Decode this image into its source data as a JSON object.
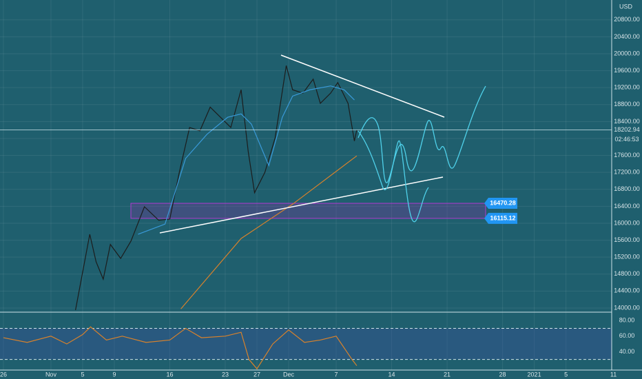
{
  "chart_data": [
    {
      "type": "line",
      "currency": "USD",
      "xlim": [
        -0.43,
        80.6
      ],
      "xticks": [
        {
          "value": 0,
          "label": "26"
        },
        {
          "value": 6,
          "label": "Nov"
        },
        {
          "value": 10,
          "label": "5"
        },
        {
          "value": 14,
          "label": "9"
        },
        {
          "value": 21,
          "label": "16"
        },
        {
          "value": 28,
          "label": "23"
        },
        {
          "value": 32,
          "label": "27"
        },
        {
          "value": 36,
          "label": "Dec"
        },
        {
          "value": 42,
          "label": "7"
        },
        {
          "value": 49,
          "label": "14"
        },
        {
          "value": 56,
          "label": "21"
        },
        {
          "value": 63,
          "label": "28"
        },
        {
          "value": 67,
          "label": "2021"
        },
        {
          "value": 71,
          "label": "5"
        },
        {
          "value": 77,
          "label": "11"
        }
      ],
      "ylim": [
        13902,
        21268
      ],
      "yticks": [
        {
          "value": 14000,
          "label": "14000.00"
        },
        {
          "value": 14400,
          "label": "14400.00"
        },
        {
          "value": 14800,
          "label": "14800.00"
        },
        {
          "value": 15200,
          "label": "15200.00"
        },
        {
          "value": 15600,
          "label": "15600.00"
        },
        {
          "value": 16000,
          "label": "16000.00"
        },
        {
          "value": 16400,
          "label": "16400.00"
        },
        {
          "value": 16800,
          "label": "16800.00"
        },
        {
          "value": 17200,
          "label": "17200.00"
        },
        {
          "value": 17600,
          "label": "17600.00"
        },
        {
          "value": 18000,
          "label": "18000.00"
        },
        {
          "value": 18400,
          "label": "18400.00"
        },
        {
          "value": 18800,
          "label": "18800.00"
        },
        {
          "value": 19200,
          "label": "19200.00"
        },
        {
          "value": 19600,
          "label": "19600.00"
        },
        {
          "value": 20000,
          "label": "20000.00"
        },
        {
          "value": 20400,
          "label": "20400.00"
        },
        {
          "value": 20800,
          "label": "20800.00"
        }
      ],
      "grid": true,
      "series": [
        {
          "color": "#1c1c1c",
          "x": [
            9.1,
            10.9,
            11.7,
            12.6,
            13.5,
            14.8,
            16.1,
            17.8,
            19.6,
            21,
            22.2,
            23.5,
            24.8,
            26.1,
            27.4,
            28.7,
            30,
            30.9,
            31.7,
            33,
            34.3,
            35.7,
            36.5,
            37.8,
            39.1,
            40,
            41.3,
            42.2,
            43.5,
            44.3,
            44.6
          ],
          "values": [
            13950,
            15740,
            15090,
            14680,
            15500,
            15170,
            15580,
            16390,
            16070,
            16100,
            17200,
            18260,
            18180,
            18740,
            18500,
            18260,
            19150,
            17690,
            16720,
            17200,
            18020,
            19720,
            19150,
            19070,
            19400,
            18830,
            19070,
            19320,
            18830,
            17940,
            18200
          ]
        },
        {
          "color": "#3a9ad9",
          "x": [
            17,
            20.4,
            23,
            25.7,
            28.3,
            30,
            31.3,
            33.5,
            35.2,
            36.5,
            38.7,
            41.3,
            43,
            44.3
          ],
          "values": [
            15740,
            15980,
            17530,
            18100,
            18500,
            18580,
            18340,
            17360,
            18500,
            19000,
            19150,
            19240,
            19150,
            18910
          ]
        },
        {
          "color": "#d9822b",
          "x": [
            22.4,
            30,
            36.5,
            44.6
          ],
          "values": [
            13980,
            15640,
            16450,
            17590
          ]
        }
      ],
      "price_labels": [
        16470.28,
        16115.12
      ],
      "last_price": 18202.94,
      "countdown": "02:46:53"
    },
    {
      "type": "line",
      "ylim": [
        16.4,
        89.1
      ],
      "yticks": [
        {
          "value": 80,
          "label": "80.00"
        },
        {
          "value": 60,
          "label": "60.00"
        },
        {
          "value": 40,
          "label": "40.00"
        }
      ],
      "bands": [
        30,
        70
      ],
      "series": [
        {
          "color": "#d9822b",
          "x": [
            0,
            3,
            6,
            8,
            10,
            11,
            13,
            15,
            18,
            21,
            23,
            25,
            28,
            30,
            31,
            32,
            34,
            36,
            38,
            40,
            42,
            43,
            44,
            44.6
          ],
          "values": [
            58,
            52,
            60,
            50,
            62,
            72,
            55,
            60,
            52,
            55,
            70,
            58,
            60,
            65,
            30,
            18,
            50,
            68,
            52,
            55,
            60,
            45,
            30,
            22
          ]
        }
      ]
    }
  ]
}
